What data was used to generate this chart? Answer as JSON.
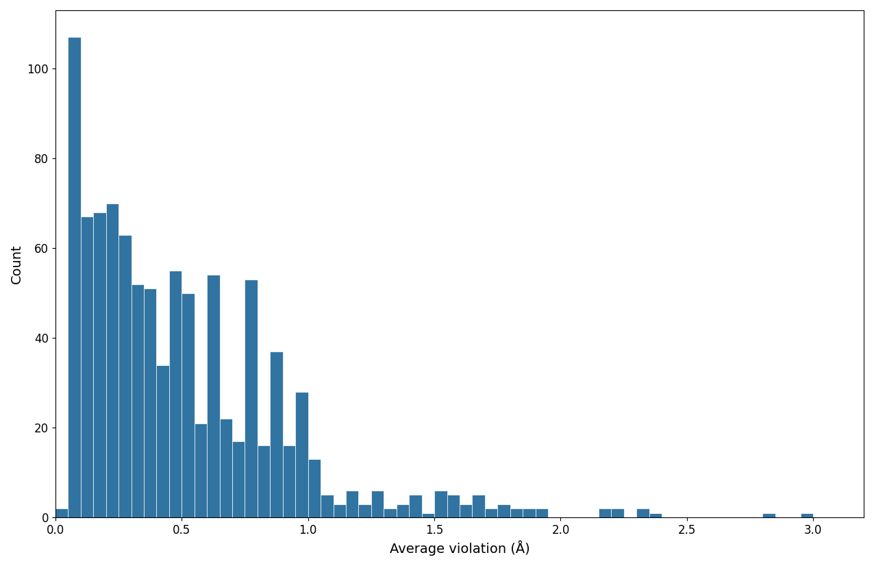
{
  "xlabel": "Average violation (Å)",
  "ylabel": "Count",
  "bar_color": "#3274a1",
  "bar_edgecolor": "white",
  "xlim": [
    0.0,
    3.2
  ],
  "ylim": [
    0,
    113
  ],
  "bin_width": 0.05,
  "bin_starts": [
    0.0,
    0.05,
    0.1,
    0.15,
    0.2,
    0.25,
    0.3,
    0.35,
    0.4,
    0.45,
    0.5,
    0.55,
    0.6,
    0.65,
    0.7,
    0.75,
    0.8,
    0.85,
    0.9,
    0.95,
    1.0,
    1.05,
    1.1,
    1.15,
    1.2,
    1.25,
    1.3,
    1.35,
    1.4,
    1.45,
    1.5,
    1.55,
    1.6,
    1.65,
    1.7,
    1.75,
    1.8,
    1.85,
    1.9,
    1.95,
    2.0,
    2.05,
    2.1,
    2.15,
    2.2,
    2.25,
    2.3,
    2.35,
    2.4,
    2.45,
    2.5,
    2.55,
    2.6,
    2.65,
    2.7,
    2.75,
    2.8,
    2.85,
    2.9,
    2.95,
    3.0,
    3.05,
    3.1,
    3.15
  ],
  "counts": [
    2,
    107,
    67,
    68,
    70,
    63,
    52,
    51,
    34,
    55,
    50,
    21,
    54,
    22,
    17,
    53,
    16,
    37,
    16,
    28,
    13,
    5,
    3,
    6,
    3,
    6,
    2,
    3,
    5,
    1,
    6,
    5,
    3,
    5,
    2,
    3,
    2,
    2,
    2,
    0,
    0,
    0,
    0,
    2,
    2,
    0,
    2,
    1,
    0,
    0,
    0,
    0,
    0,
    0,
    0,
    0,
    1,
    0,
    0,
    1,
    0,
    0,
    0,
    0
  ],
  "xticks": [
    0.0,
    0.5,
    1.0,
    1.5,
    2.0,
    2.5,
    3.0
  ],
  "yticks": [
    0,
    20,
    40,
    60,
    80,
    100
  ],
  "background_color": "#ffffff",
  "figsize": [
    12.76,
    8.26
  ],
  "dpi": 100
}
